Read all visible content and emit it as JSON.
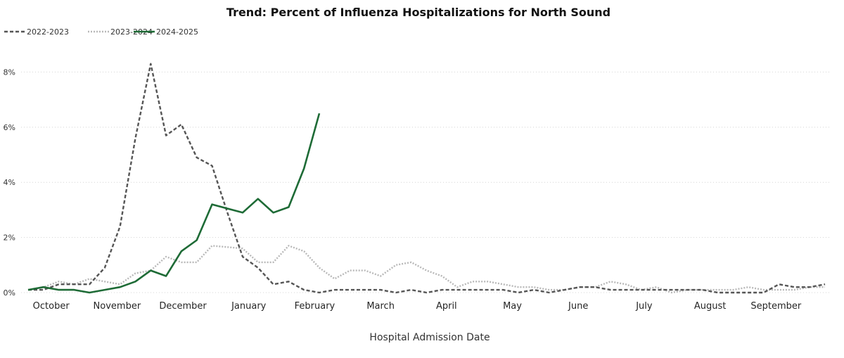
{
  "chart_data": {
    "type": "line",
    "title": "Trend: Percent of Influenza Hospitalizations for North Sound",
    "xlabel": "Hospital Admission Date",
    "ylabel": "",
    "x_unit": "week of season",
    "xlim": [
      0,
      52
    ],
    "ylim": [
      0,
      8.7
    ],
    "y_ticks": [
      {
        "value": 0,
        "label": "0%"
      },
      {
        "value": 2,
        "label": "2%"
      },
      {
        "value": 4,
        "label": "4%"
      },
      {
        "value": 6,
        "label": "6%"
      },
      {
        "value": 8,
        "label": "8%"
      }
    ],
    "x_ticks": [
      {
        "value": 1.5,
        "label": "October"
      },
      {
        "value": 5.8,
        "label": "November"
      },
      {
        "value": 10.1,
        "label": "December"
      },
      {
        "value": 14.4,
        "label": "January"
      },
      {
        "value": 18.7,
        "label": "February"
      },
      {
        "value": 23.0,
        "label": "March"
      },
      {
        "value": 27.3,
        "label": "April"
      },
      {
        "value": 31.6,
        "label": "May"
      },
      {
        "value": 35.9,
        "label": "June"
      },
      {
        "value": 40.2,
        "label": "July"
      },
      {
        "value": 44.5,
        "label": "August"
      },
      {
        "value": 48.8,
        "label": "September"
      }
    ],
    "grid": true,
    "legend_position": "top-left",
    "series": [
      {
        "name": "2022-2023",
        "style": "dashed",
        "color": "#555555",
        "x": [
          0,
          1,
          2,
          3,
          4,
          5,
          6,
          7,
          8,
          9,
          10,
          11,
          12,
          13,
          14,
          15,
          16,
          17,
          18,
          19,
          20,
          21,
          22,
          23,
          24,
          25,
          26,
          27,
          28,
          29,
          30,
          31,
          32,
          33,
          34,
          35,
          36,
          37,
          38,
          39,
          40,
          41,
          42,
          43,
          44,
          45,
          46,
          47,
          48,
          49,
          50,
          51,
          52
        ],
        "values": [
          0.1,
          0.1,
          0.3,
          0.3,
          0.3,
          0.9,
          2.4,
          5.6,
          8.3,
          5.7,
          6.1,
          4.9,
          4.6,
          2.9,
          1.3,
          0.9,
          0.3,
          0.4,
          0.1,
          0.0,
          0.1,
          0.1,
          0.1,
          0.1,
          0.0,
          0.1,
          0.0,
          0.1,
          0.1,
          0.1,
          0.1,
          0.1,
          0.0,
          0.1,
          0.0,
          0.1,
          0.2,
          0.2,
          0.1,
          0.1,
          0.1,
          0.1,
          0.1,
          0.1,
          0.1,
          0.0,
          0.0,
          0.0,
          0.0,
          0.3,
          0.2,
          0.2,
          0.3
        ]
      },
      {
        "name": "2023-2024",
        "style": "dotted",
        "color": "#b8b8b8",
        "x": [
          0,
          1,
          2,
          3,
          4,
          5,
          6,
          7,
          8,
          9,
          10,
          11,
          12,
          13,
          14,
          15,
          16,
          17,
          18,
          19,
          20,
          21,
          22,
          23,
          24,
          25,
          26,
          27,
          28,
          29,
          30,
          31,
          32,
          33,
          34,
          35,
          36,
          37,
          38,
          39,
          40,
          41,
          42,
          43,
          44,
          45,
          46,
          47,
          48,
          49,
          50,
          51,
          52
        ],
        "values": [
          0.1,
          0.2,
          0.4,
          0.3,
          0.5,
          0.4,
          0.3,
          0.7,
          0.8,
          1.3,
          1.1,
          1.1,
          1.7,
          1.65,
          1.6,
          1.1,
          1.1,
          1.7,
          1.5,
          0.9,
          0.5,
          0.8,
          0.8,
          0.6,
          1.0,
          1.1,
          0.8,
          0.6,
          0.2,
          0.4,
          0.4,
          0.3,
          0.2,
          0.2,
          0.1,
          0.1,
          0.2,
          0.2,
          0.4,
          0.3,
          0.1,
          0.2,
          0.0,
          0.1,
          0.1,
          0.1,
          0.1,
          0.2,
          0.1,
          0.1,
          0.1,
          0.2,
          0.2
        ]
      },
      {
        "name": "2024-2025",
        "style": "solid",
        "color": "#1e6b36",
        "x": [
          0,
          1,
          2,
          3,
          4,
          5,
          6,
          7,
          8,
          9,
          10,
          11,
          12,
          13,
          14,
          15,
          16,
          17,
          18,
          19
        ],
        "values": [
          0.1,
          0.2,
          0.1,
          0.1,
          0.0,
          0.1,
          0.2,
          0.4,
          0.8,
          0.6,
          1.5,
          1.9,
          3.2,
          3.05,
          2.9,
          3.4,
          2.9,
          3.1,
          4.5,
          6.5
        ]
      }
    ]
  }
}
